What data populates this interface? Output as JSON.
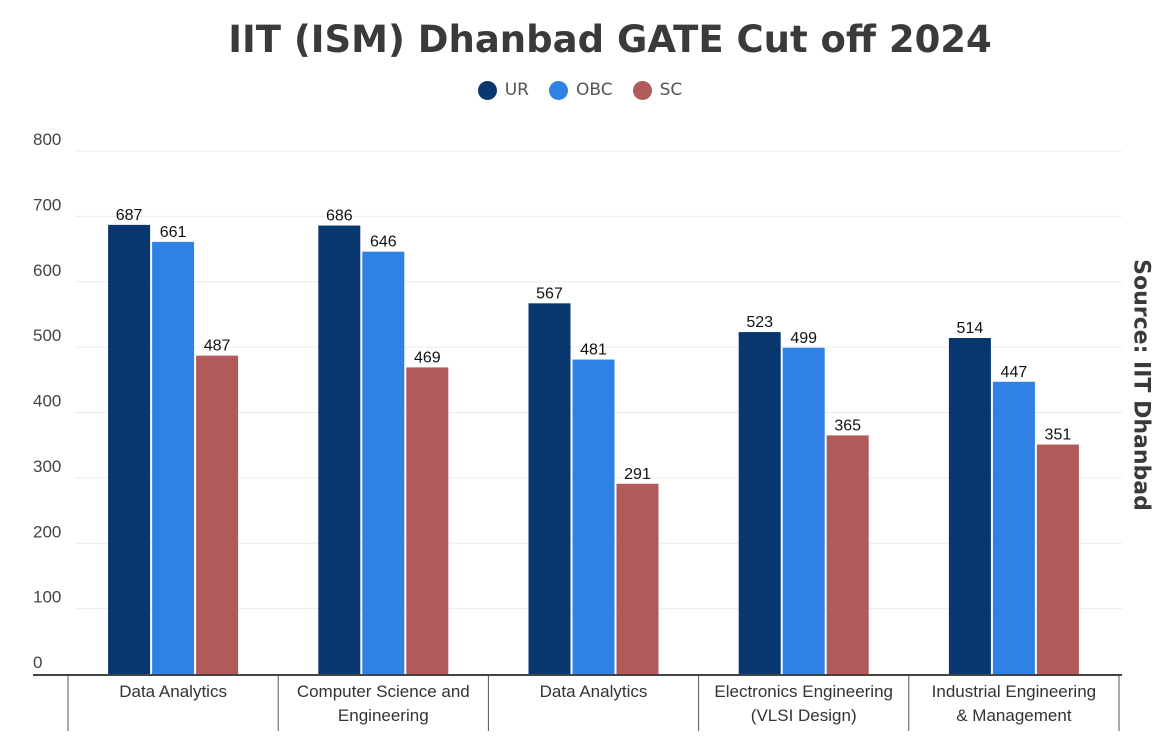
{
  "chart_data": {
    "type": "bar",
    "title": "IIT (ISM) Dhanbad GATE Cut off 2024",
    "source": "Source: IIT Dhanbad",
    "categories": [
      [
        "Data Analytics"
      ],
      [
        "Computer Science and",
        "Engineering"
      ],
      [
        "Data Analytics"
      ],
      [
        "Electronics Engineering",
        "(VLSI Design)"
      ],
      [
        "Industrial Engineering",
        "& Management"
      ]
    ],
    "series": [
      {
        "name": "UR",
        "color": "#08366f",
        "values": [
          687,
          686,
          567,
          523,
          514
        ]
      },
      {
        "name": "OBC",
        "color": "#2f82e3",
        "values": [
          661,
          646,
          481,
          499,
          447
        ]
      },
      {
        "name": "SC",
        "color": "#b05a5a",
        "values": [
          487,
          469,
          291,
          365,
          351
        ]
      }
    ],
    "ylim": [
      0,
      800
    ],
    "yticks": [
      0,
      100,
      200,
      300,
      400,
      500,
      600,
      700,
      800
    ],
    "grid": true,
    "legend_position": "top"
  }
}
